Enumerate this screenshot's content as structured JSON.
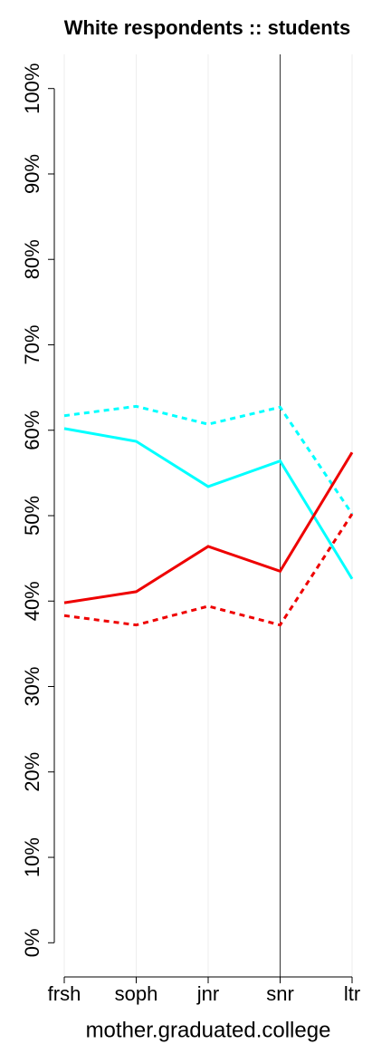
{
  "chart_data": {
    "type": "line",
    "title": "White respondents :: students",
    "x_label": "mother.graduated.college",
    "categories": [
      "frsh",
      "soph",
      "jnr",
      "snr",
      "ltr"
    ],
    "series": [
      {
        "color": "#00ffff",
        "dashed": true,
        "values": [
          61.7,
          62.8,
          60.7,
          62.7,
          50.2
        ]
      },
      {
        "color": "#00ffff",
        "dashed": false,
        "values": [
          60.2,
          58.7,
          53.4,
          56.4,
          42.6
        ]
      },
      {
        "color": "#ee0000",
        "dashed": false,
        "values": [
          39.8,
          41.1,
          46.4,
          43.5,
          57.4
        ]
      },
      {
        "color": "#ee0000",
        "dashed": true,
        "values": [
          38.3,
          37.2,
          39.4,
          37.2,
          50.2
        ]
      }
    ],
    "ylim": [
      -4,
      104
    ],
    "yticks": [
      {
        "value": 0,
        "label": "0%"
      },
      {
        "value": 10,
        "label": "10%"
      },
      {
        "value": 20,
        "label": "20%"
      },
      {
        "value": 30,
        "label": "30%"
      },
      {
        "value": 40,
        "label": "40%"
      },
      {
        "value": 50,
        "label": "50%"
      },
      {
        "value": 60,
        "label": "60%"
      },
      {
        "value": 70,
        "label": "70%"
      },
      {
        "value": 80,
        "label": "80%"
      },
      {
        "value": 90,
        "label": "90%"
      },
      {
        "value": 100,
        "label": "100%"
      }
    ],
    "grid": true,
    "vline": "snr"
  }
}
